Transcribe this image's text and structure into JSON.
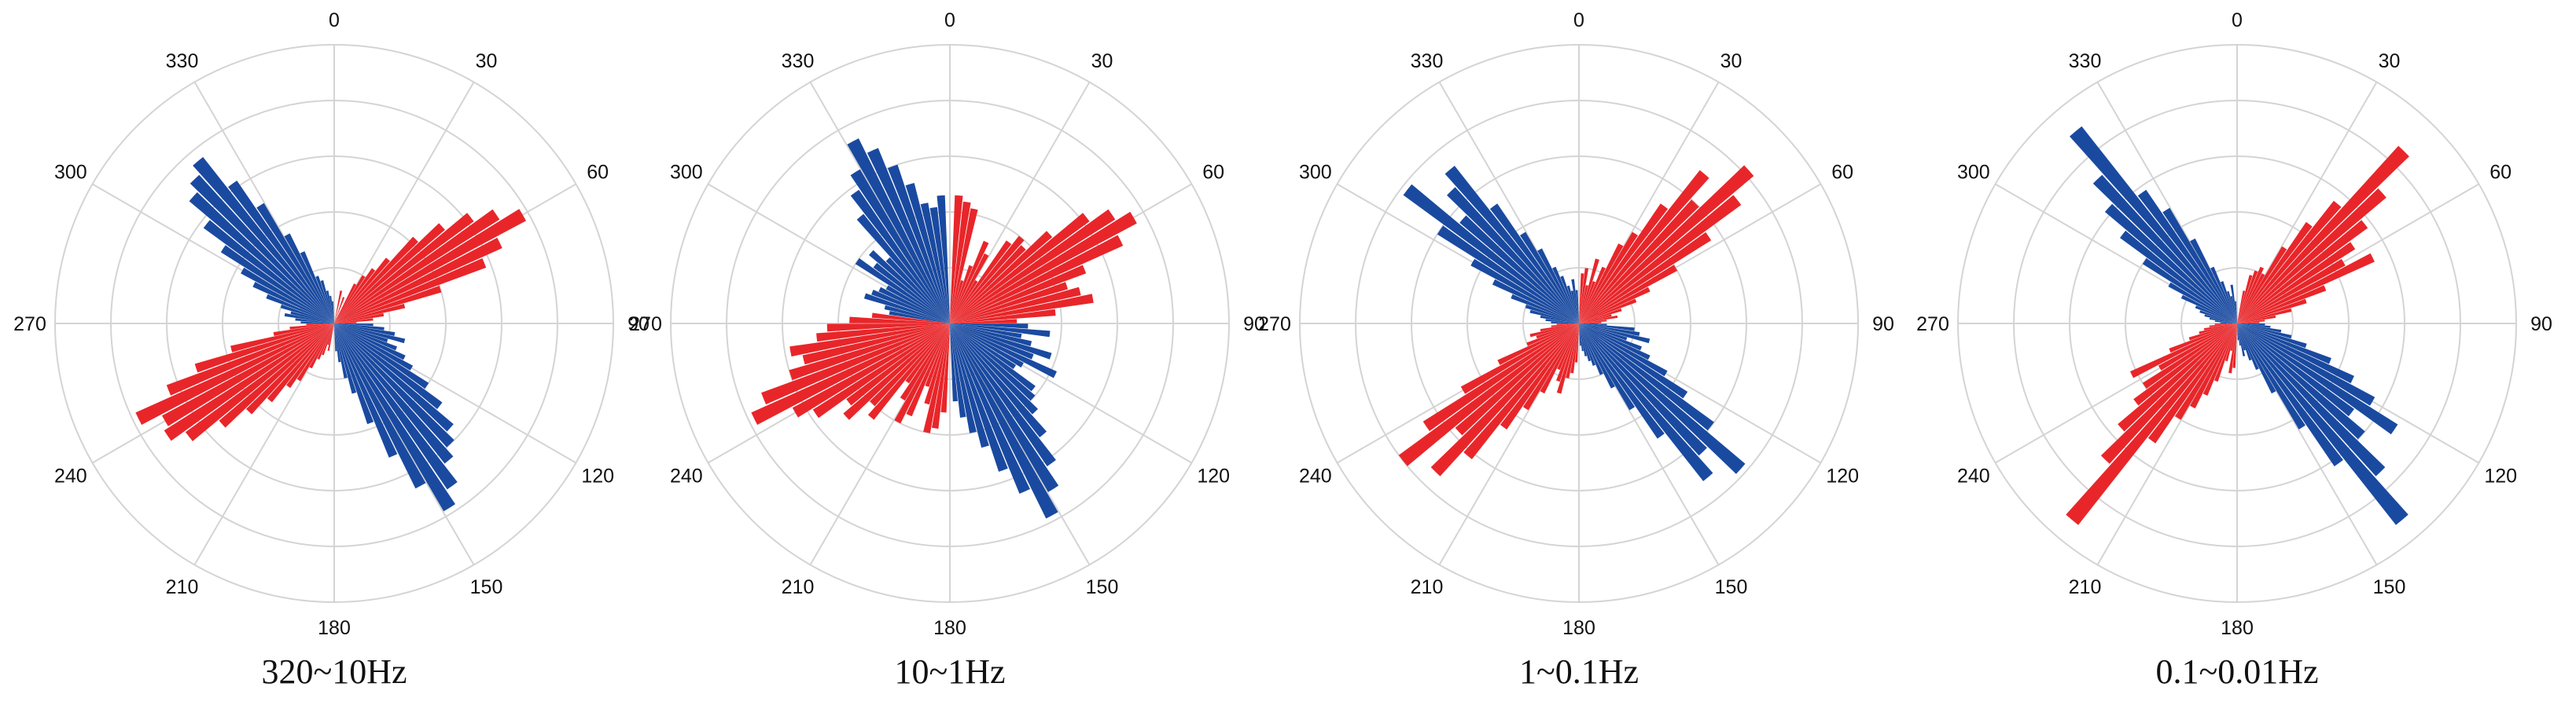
{
  "colors": {
    "red": "#e8262a",
    "blue": "#1a4aa0",
    "grid": "#d4d4d4"
  },
  "chart_data": [
    {
      "type": "rose",
      "caption": "320~10Hz",
      "angle_ticks": [
        "0",
        "30",
        "60",
        "90",
        "120",
        "150",
        "180",
        "210",
        "240",
        "270",
        "300",
        "330"
      ],
      "grid": true,
      "radial_max": 5,
      "series": [
        {
          "color": "red",
          "directions": [
            12,
            20,
            28,
            32,
            36,
            40,
            44,
            48,
            52,
            56,
            60,
            64,
            68,
            72,
            76,
            80,
            84,
            88,
            192,
            196,
            200,
            204,
            208,
            212,
            216,
            220,
            224,
            228,
            232,
            236,
            240,
            244,
            248,
            252,
            256,
            260,
            264,
            268
          ],
          "values": [
            0.6,
            0.5,
            0.8,
            1.0,
            1.2,
            1.5,
            2.1,
            2.6,
            3.1,
            3.5,
            3.9,
            3.3,
            2.9,
            2.0,
            1.3,
            0.9,
            0.7,
            0.4,
            0.5,
            0.4,
            0.6,
            0.7,
            0.9,
            1.2,
            1.4,
            1.8,
            2.2,
            2.7,
            3.3,
            3.6,
            3.5,
            3.9,
            3.2,
            2.6,
            1.9,
            1.1,
            0.8,
            0.5
          ]
        },
        {
          "color": "blue",
          "directions": [
            272,
            276,
            280,
            284,
            288,
            292,
            296,
            300,
            304,
            308,
            312,
            316,
            320,
            324,
            328,
            332,
            336,
            340,
            344,
            348,
            352,
            356,
            92,
            96,
            100,
            104,
            108,
            112,
            116,
            120,
            124,
            128,
            132,
            136,
            140,
            144,
            148,
            152,
            156,
            160,
            164,
            168,
            172,
            176
          ],
          "values": [
            0.6,
            0.7,
            0.9,
            0.8,
            1.0,
            1.3,
            1.6,
            1.9,
            2.4,
            2.9,
            3.4,
            3.6,
            3.8,
            3.1,
            2.5,
            1.8,
            1.4,
            0.9,
            0.8,
            0.6,
            0.5,
            0.4,
            0.7,
            0.9,
            1.1,
            1.3,
            1.0,
            1.2,
            1.4,
            1.6,
            2.0,
            2.4,
            2.8,
            3.0,
            3.2,
            3.6,
            3.9,
            3.3,
            2.6,
            1.9,
            1.3,
            1.0,
            0.7,
            0.5
          ]
        }
      ]
    },
    {
      "type": "rose",
      "caption": "10~1Hz",
      "angle_ticks": [
        "0",
        "30",
        "60",
        "90",
        "120",
        "150",
        "180",
        "210",
        "240",
        "270",
        "300",
        "330"
      ],
      "grid": true,
      "radial_max": 5,
      "series": [
        {
          "color": "red",
          "directions": [
            4,
            8,
            12,
            16,
            20,
            24,
            28,
            32,
            36,
            40,
            44,
            48,
            52,
            56,
            60,
            64,
            68,
            72,
            76,
            80,
            84,
            88,
            184,
            188,
            192,
            196,
            200,
            204,
            208,
            212,
            216,
            220,
            224,
            228,
            232,
            236,
            240,
            244,
            248,
            252,
            256,
            260,
            264,
            268,
            272,
            276
          ],
          "values": [
            2.3,
            2.2,
            2.1,
            0.8,
            1.1,
            1.6,
            1.4,
            0.9,
            1.8,
            2.0,
            1.9,
            2.4,
            3.1,
            3.5,
            3.8,
            3.4,
            2.6,
            2.2,
            2.4,
            2.6,
            1.9,
            1.2,
            1.6,
            1.9,
            2.0,
            1.5,
            1.2,
            1.8,
            2.0,
            1.6,
            1.3,
            2.2,
            2.0,
            2.5,
            2.3,
            2.9,
            3.2,
            3.9,
            3.6,
            3.0,
            2.7,
            2.9,
            2.4,
            2.2,
            1.8,
            1.4
          ]
        },
        {
          "color": "blue",
          "directions": [
            280,
            284,
            288,
            292,
            296,
            300,
            304,
            308,
            312,
            316,
            320,
            324,
            328,
            332,
            336,
            340,
            344,
            348,
            352,
            356,
            92,
            96,
            100,
            104,
            108,
            112,
            116,
            120,
            124,
            128,
            132,
            136,
            140,
            144,
            148,
            152,
            156,
            160,
            164,
            168,
            172,
            176
          ],
          "values": [
            1.1,
            1.2,
            1.6,
            1.5,
            1.4,
            1.3,
            2.0,
            1.7,
            1.9,
            1.6,
            2.5,
            2.9,
            3.2,
            3.7,
            3.4,
            3.0,
            2.6,
            2.2,
            2.1,
            2.3,
            1.4,
            1.8,
            1.3,
            1.5,
            1.9,
            1.6,
            2.1,
            1.5,
            1.4,
            1.9,
            2.0,
            2.2,
            2.6,
            3.1,
            3.5,
            3.9,
            3.3,
            2.8,
            2.3,
            2.0,
            1.7,
            1.4
          ]
        }
      ]
    },
    {
      "type": "rose",
      "caption": "1~0.1Hz",
      "angle_ticks": [
        "0",
        "30",
        "60",
        "90",
        "120",
        "150",
        "180",
        "210",
        "240",
        "270",
        "300",
        "330"
      ],
      "grid": true,
      "radial_max": 5,
      "series": [
        {
          "color": "red",
          "directions": [
            4,
            8,
            12,
            16,
            20,
            24,
            28,
            32,
            36,
            40,
            44,
            48,
            52,
            56,
            60,
            64,
            68,
            72,
            76,
            80,
            84,
            88,
            184,
            188,
            192,
            196,
            200,
            204,
            208,
            212,
            216,
            220,
            224,
            228,
            232,
            236,
            240,
            244,
            248,
            252,
            256,
            260,
            264,
            268
          ],
          "values": [
            0.9,
            1.0,
            0.7,
            1.2,
            0.8,
            1.1,
            1.6,
            1.9,
            2.6,
            3.5,
            3.0,
            4.1,
            3.6,
            2.8,
            2.0,
            1.4,
            1.1,
            0.8,
            0.6,
            0.7,
            0.5,
            0.4,
            0.7,
            0.9,
            1.0,
            1.3,
            1.1,
            0.9,
            1.4,
            1.8,
            2.3,
            3.1,
            3.7,
            2.9,
            4.0,
            3.3,
            2.4,
            1.6,
            1.0,
            0.8,
            0.9,
            0.7,
            0.5,
            0.4
          ]
        },
        {
          "color": "blue",
          "directions": [
            272,
            276,
            280,
            284,
            288,
            292,
            296,
            300,
            304,
            308,
            312,
            316,
            320,
            324,
            328,
            332,
            336,
            340,
            344,
            348,
            352,
            356,
            92,
            96,
            100,
            104,
            108,
            112,
            116,
            120,
            124,
            128,
            132,
            136,
            140,
            144,
            148,
            152,
            156,
            160,
            164,
            168,
            172,
            176
          ],
          "values": [
            0.5,
            0.6,
            0.7,
            0.9,
            1.0,
            1.3,
            1.7,
            2.2,
            3.0,
            3.9,
            2.8,
            3.3,
            3.6,
            2.6,
            1.9,
            1.5,
            1.1,
            0.9,
            0.7,
            0.6,
            0.8,
            0.6,
            0.5,
            1.0,
            1.1,
            1.3,
            0.9,
            1.2,
            1.4,
            1.8,
            2.3,
            3.0,
            3.9,
            3.2,
            3.6,
            2.5,
            1.8,
            1.3,
            1.0,
            0.8,
            0.7,
            0.6,
            0.5,
            0.4
          ]
        }
      ]
    },
    {
      "type": "rose",
      "caption": "0.1~0.01Hz",
      "angle_ticks": [
        "0",
        "30",
        "60",
        "90",
        "120",
        "150",
        "180",
        "210",
        "240",
        "270",
        "300",
        "330"
      ],
      "grid": true,
      "radial_max": 5,
      "series": [
        {
          "color": "red",
          "directions": [
            12,
            16,
            20,
            24,
            28,
            32,
            36,
            40,
            44,
            48,
            52,
            56,
            60,
            64,
            68,
            72,
            76,
            80,
            84,
            88,
            184,
            188,
            192,
            196,
            200,
            204,
            208,
            212,
            216,
            220,
            224,
            228,
            232,
            236,
            240,
            244,
            248,
            252,
            256,
            260,
            264,
            268
          ],
          "values": [
            0.6,
            0.9,
            1.0,
            1.1,
            1.0,
            1.6,
            2.2,
            2.8,
            4.3,
            3.5,
            2.9,
            2.5,
            2.2,
            2.7,
            1.7,
            1.3,
            1.0,
            0.7,
            0.5,
            0.4,
            0.8,
            0.9,
            0.5,
            0.7,
            1.1,
            1.4,
            1.7,
            2.0,
            2.6,
            4.6,
            3.4,
            2.8,
            2.3,
            2.0,
            1.6,
            2.1,
            1.3,
            0.9,
            0.7,
            0.6,
            0.5,
            0.4
          ]
        },
        {
          "color": "blue",
          "directions": [
            272,
            276,
            280,
            284,
            288,
            292,
            296,
            300,
            304,
            308,
            312,
            316,
            320,
            324,
            328,
            332,
            336,
            340,
            344,
            348,
            352,
            356,
            92,
            96,
            100,
            104,
            108,
            112,
            116,
            120,
            124,
            128,
            132,
            136,
            140,
            144,
            148,
            152,
            156,
            160,
            164,
            168,
            172,
            176
          ],
          "values": [
            0.3,
            0.4,
            0.5,
            0.6,
            0.7,
            0.8,
            1.1,
            1.4,
            2.0,
            2.6,
            3.1,
            3.6,
            4.5,
            2.9,
            2.4,
            1.7,
            1.1,
            0.8,
            0.6,
            0.5,
            0.7,
            0.4,
            0.5,
            0.6,
            0.8,
            1.0,
            1.3,
            1.8,
            2.3,
            2.8,
            3.4,
            2.6,
            3.0,
            3.7,
            4.6,
            3.1,
            2.2,
            1.4,
            0.9,
            0.7,
            0.5,
            0.6,
            0.4,
            0.3
          ]
        }
      ]
    }
  ]
}
